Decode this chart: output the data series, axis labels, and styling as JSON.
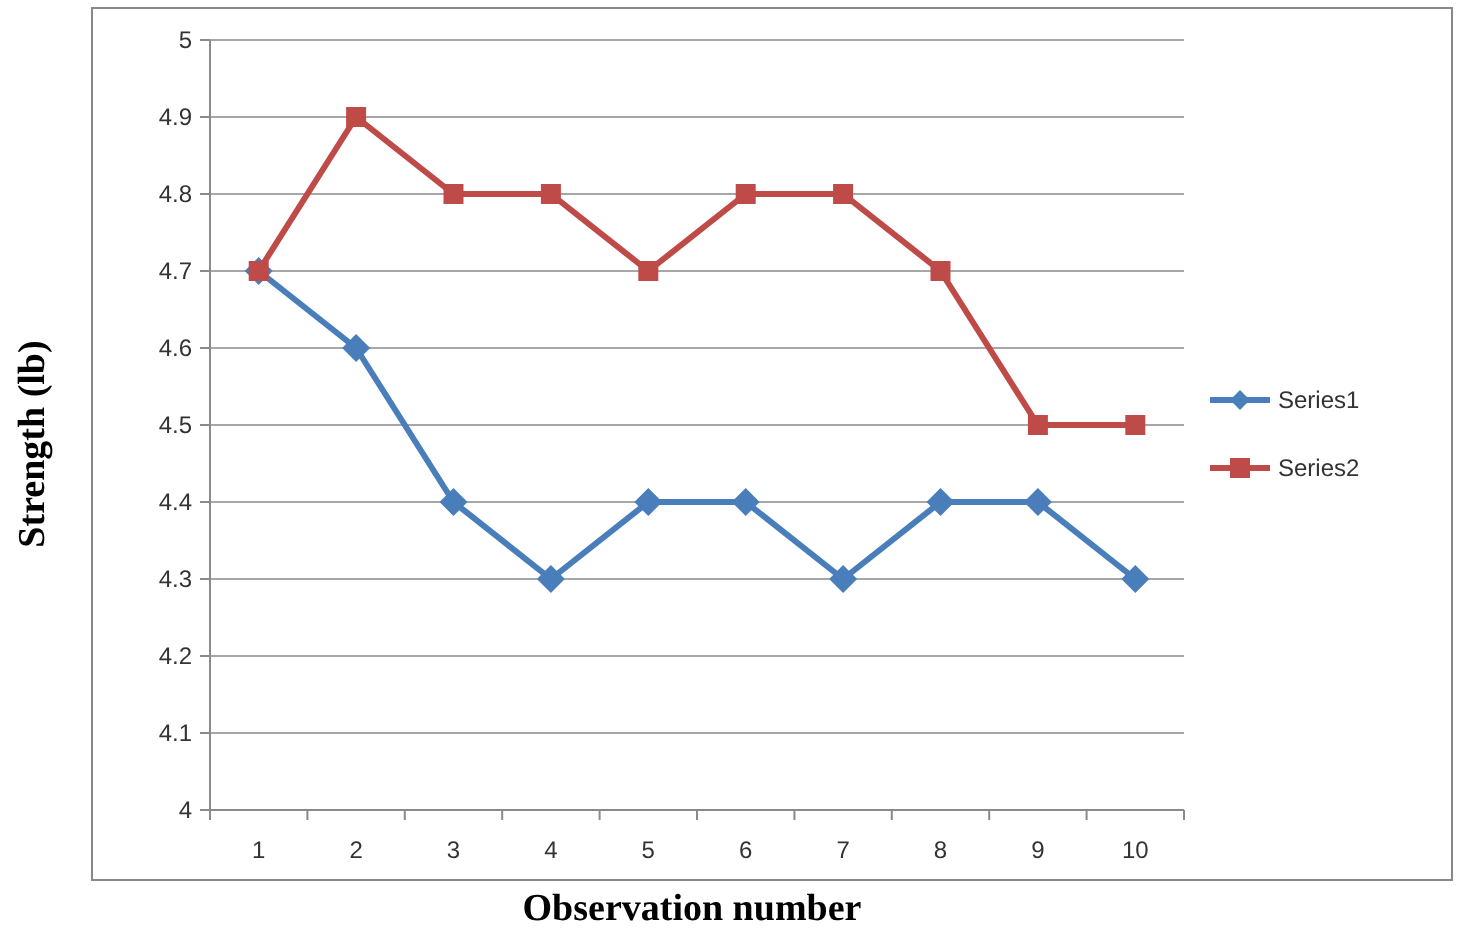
{
  "chart_data": {
    "type": "line",
    "xlabel": "Observation number",
    "ylabel": "Strength (lb)",
    "categories": [
      "1",
      "2",
      "3",
      "4",
      "5",
      "6",
      "7",
      "8",
      "9",
      "10"
    ],
    "series": [
      {
        "name": "Series1",
        "color": "#4a7ebb",
        "marker": "diamond",
        "values": [
          4.7,
          4.6,
          4.4,
          4.3,
          4.4,
          4.4,
          4.3,
          4.4,
          4.4,
          4.3
        ]
      },
      {
        "name": "Series2",
        "color": "#be4b48",
        "marker": "square",
        "values": [
          4.7,
          4.9,
          4.8,
          4.8,
          4.7,
          4.8,
          4.8,
          4.7,
          4.5,
          4.5
        ]
      }
    ],
    "ylim": [
      4,
      5
    ],
    "yticks": [
      4,
      4.1,
      4.2,
      4.3,
      4.4,
      4.5,
      4.6,
      4.7,
      4.8,
      4.9,
      5
    ],
    "grid": "y",
    "legend": "right"
  }
}
